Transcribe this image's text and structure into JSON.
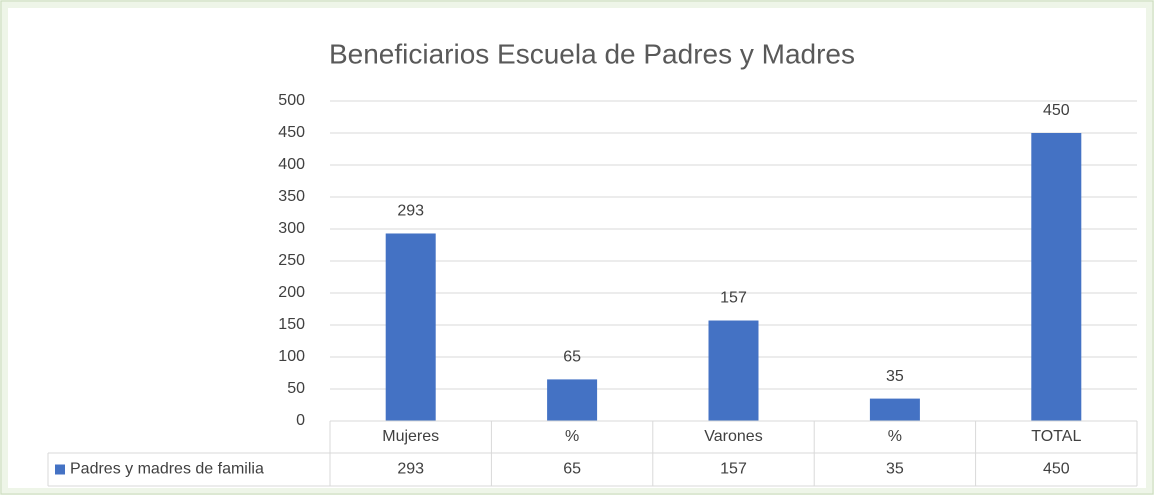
{
  "chart_data": {
    "type": "bar",
    "title": "Beneficiarios Escuela de Padres y Madres",
    "categories": [
      "Mujeres",
      "%",
      "Varones",
      "%",
      "TOTAL"
    ],
    "series": [
      {
        "name": "Padres y madres de familia",
        "color": "#4472c4",
        "values": [
          293,
          65,
          157,
          35,
          450
        ]
      }
    ],
    "ylim": [
      0,
      500
    ],
    "yticks": [
      0,
      50,
      100,
      150,
      200,
      250,
      300,
      350,
      400,
      450,
      500
    ],
    "grid": true,
    "data_table": true
  }
}
